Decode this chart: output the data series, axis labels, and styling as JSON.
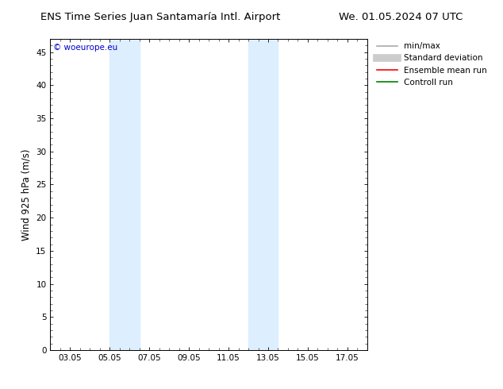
{
  "title": "ENS Time Series Juan Santamaría Intl. Airport",
  "title_right": "We. 01.05.2024 07 UTC",
  "ylabel": "Wind 925 hPa (m/s)",
  "watermark": "© woeurope.eu",
  "xtick_labels": [
    "03.05",
    "05.05",
    "07.05",
    "09.05",
    "11.05",
    "13.05",
    "15.05",
    "17.05"
  ],
  "xtick_positions": [
    2,
    4,
    6,
    8,
    10,
    12,
    14,
    16
  ],
  "xlim": [
    1,
    17
  ],
  "ylim": [
    0,
    47
  ],
  "ytick_positions": [
    0,
    5,
    10,
    15,
    20,
    25,
    30,
    35,
    40,
    45
  ],
  "ytick_labels": [
    "0",
    "5",
    "10",
    "15",
    "20",
    "25",
    "30",
    "35",
    "40",
    "45"
  ],
  "shaded_bands": [
    {
      "x_start": 4.0,
      "x_end": 5.5,
      "color": "#ddeeff"
    },
    {
      "x_start": 11.0,
      "x_end": 12.5,
      "color": "#ddeeff"
    }
  ],
  "background_color": "#ffffff",
  "plot_bg_color": "#ffffff",
  "legend_items": [
    {
      "label": "min/max",
      "color": "#aaaaaa",
      "linestyle": "-",
      "linewidth": 1.2
    },
    {
      "label": "Standard deviation",
      "color": "#cccccc",
      "linestyle": "-",
      "linewidth": 7
    },
    {
      "label": "Ensemble mean run",
      "color": "#ff0000",
      "linestyle": "-",
      "linewidth": 1.2
    },
    {
      "label": "Controll run",
      "color": "#008000",
      "linestyle": "-",
      "linewidth": 1.2
    }
  ],
  "font_size_title": 9.5,
  "font_size_labels": 8.5,
  "font_size_ticks": 7.5,
  "font_size_legend": 7.5,
  "font_size_watermark": 7.5,
  "watermark_color": "#0000cc"
}
